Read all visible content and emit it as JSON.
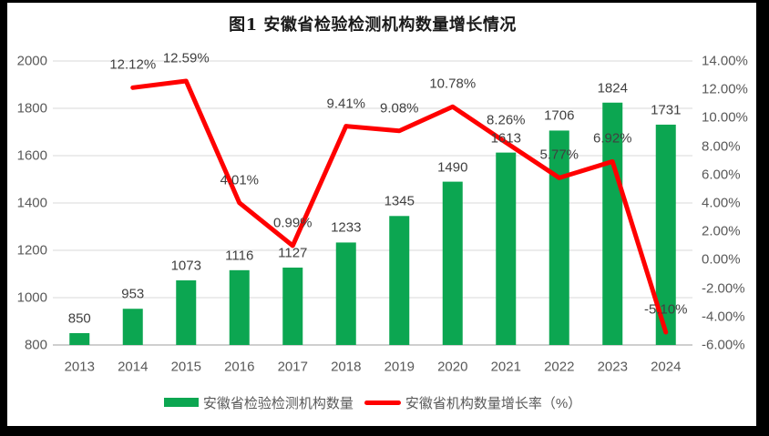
{
  "title": "图1 安徽省检验检测机构数量增长情况",
  "chart_data": {
    "type": "combo",
    "title": "图1 安徽省检验检测机构数量增长情况",
    "categories": [
      "2013",
      "2014",
      "2015",
      "2016",
      "2017",
      "2018",
      "2019",
      "2020",
      "2021",
      "2022",
      "2023",
      "2024"
    ],
    "series": [
      {
        "name": "安徽省检验检测机构数量",
        "type": "bar",
        "axis": "left",
        "color": "#0CA651",
        "values": [
          850,
          953,
          1073,
          1116,
          1127,
          1233,
          1345,
          1490,
          1613,
          1706,
          1824,
          1731
        ],
        "labels": [
          "850",
          "953",
          "1073",
          "1116",
          "1127",
          "1233",
          "1345",
          "1490",
          "1613",
          "1706",
          "1824",
          "1731"
        ]
      },
      {
        "name": "安徽省机构数量增长率（%）",
        "type": "line",
        "axis": "right",
        "color": "#FF0000",
        "values": [
          null,
          12.12,
          12.59,
          4.01,
          0.99,
          9.41,
          9.08,
          10.78,
          8.26,
          5.77,
          6.92,
          -5.1
        ],
        "labels": [
          null,
          "12.12%",
          "12.59%",
          "4.01%",
          "0.99%",
          "9.41%",
          "9.08%",
          "10.78%",
          "8.26%",
          "5.77%",
          "6.92%",
          "-5.10%"
        ]
      }
    ],
    "left_axis": {
      "min": 800,
      "max": 2000,
      "step": 200,
      "ticks": [
        "2000",
        "1800",
        "1600",
        "1400",
        "1200",
        "1000",
        "800"
      ]
    },
    "right_axis": {
      "min": -6,
      "max": 14,
      "step": 2,
      "ticks": [
        "14.00%",
        "12.00%",
        "10.00%",
        "8.00%",
        "6.00%",
        "4.00%",
        "2.00%",
        "0.00%",
        "-2.00%",
        "-4.00%",
        "-6.00%"
      ]
    },
    "grid": true,
    "legend_position": "bottom",
    "colors": {
      "grid": "#D9D9D9",
      "axis_line": "#BFBFBF",
      "axis_text": "#595959",
      "label_text": "#404040",
      "background": "#FFFFFF",
      "frame": "#000000"
    }
  }
}
